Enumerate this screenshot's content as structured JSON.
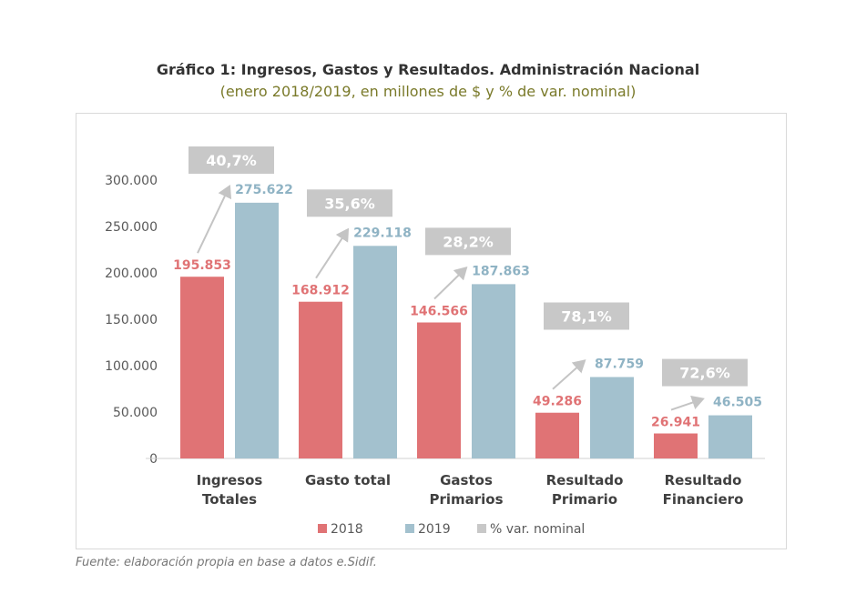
{
  "chart_data": {
    "type": "bar",
    "title": "Gráfico 1: Ingresos, Gastos y Resultados. Administración Nacional",
    "subtitle": "(enero 2018/2019, en millones de $ y % de var. nominal)",
    "categories": [
      [
        "Ingresos",
        "Totales"
      ],
      [
        "Gasto total"
      ],
      [
        "Gastos",
        "Primarios"
      ],
      [
        "Resultado",
        "Primario"
      ],
      [
        "Resultado",
        "Financiero"
      ]
    ],
    "series": [
      {
        "name": "2018",
        "color": "#e07375",
        "values": [
          195853,
          168912,
          146566,
          49286,
          26941
        ],
        "labels": [
          "195.853",
          "168.912",
          "146.566",
          "49.286",
          "26.941"
        ]
      },
      {
        "name": "2019",
        "color": "#a3c1ce",
        "values": [
          275622,
          229118,
          187863,
          87759,
          46505
        ],
        "labels": [
          "275.622",
          "229.118",
          "187.863",
          "87.759",
          "46.505"
        ]
      }
    ],
    "variation": {
      "name": "% var. nominal",
      "color": "#c8c8c8",
      "labels": [
        "40,7%",
        "35,6%",
        "28,2%",
        "78,1%",
        "72,6%"
      ]
    },
    "yticks": [
      "0",
      "50.000",
      "100.000",
      "150.000",
      "200.000",
      "250.000",
      "300.000"
    ],
    "ytick_values": [
      0,
      50000,
      100000,
      150000,
      200000,
      250000,
      300000
    ],
    "ylim": [
      0,
      300000
    ],
    "legend_position": "bottom",
    "grid": false
  },
  "source": "Fuente: elaboración propia en base a datos e.Sidif."
}
